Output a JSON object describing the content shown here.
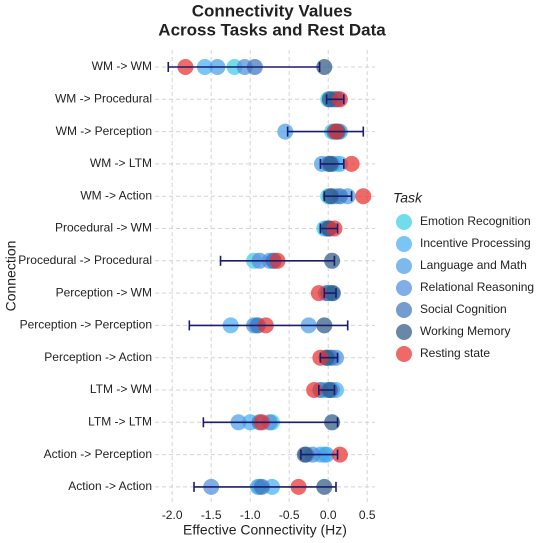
{
  "chart_data": {
    "type": "dot",
    "title": [
      "Connectivity Values",
      "Across Tasks and Rest Data"
    ],
    "x_label": "Effective Connectivity (Hz)",
    "y_label": "Connection",
    "legend_title": "Task",
    "categories": [
      "WM -> WM",
      "WM -> Procedural",
      "WM -> Perception",
      "WM -> LTM",
      "WM -> Action",
      "Procedural -> WM",
      "Procedural -> Procedural",
      "Perception -> WM",
      "Perception -> Perception",
      "Perception -> Action",
      "LTM -> WM",
      "LTM -> LTM",
      "Action -> Perception",
      "Action -> Action"
    ],
    "series": [
      {
        "name": "Emotion Recognition",
        "color": "#3ccfe6",
        "values": [
          -1.2,
          0.0,
          0.05,
          0.1,
          0.0,
          -0.05,
          -0.95,
          0.0,
          -0.92,
          0.05,
          -0.05,
          -0.72,
          -0.05,
          -0.88
        ]
      },
      {
        "name": "Incentive Processing",
        "color": "#48adf2",
        "values": [
          -1.58,
          0.08,
          0.1,
          0.15,
          0.1,
          0.0,
          -0.7,
          0.05,
          -1.25,
          0.0,
          0.1,
          -1.0,
          -0.1,
          -0.72
        ]
      },
      {
        "name": "Language and Math",
        "color": "#4a9fe8",
        "values": [
          -1.42,
          0.12,
          -0.55,
          -0.08,
          0.25,
          -0.02,
          -0.75,
          -0.03,
          -0.25,
          -0.02,
          0.0,
          -1.15,
          -0.02,
          -0.9
        ]
      },
      {
        "name": "Relational Reasoning",
        "color": "#4f8fdc",
        "values": [
          -1.07,
          0.05,
          0.15,
          0.05,
          0.05,
          0.02,
          -0.88,
          0.02,
          -0.95,
          0.1,
          0.05,
          -0.75,
          -0.2,
          -1.5
        ]
      },
      {
        "name": "Social Cognition",
        "color": "#3e76bd",
        "values": [
          -0.94,
          0.1,
          0.08,
          0.0,
          0.15,
          0.0,
          -0.7,
          0.0,
          -0.9,
          0.03,
          -0.1,
          -0.88,
          -0.28,
          -0.85
        ]
      },
      {
        "name": "Working Memory",
        "color": "#2f5a87",
        "values": [
          -0.05,
          0.02,
          0.12,
          0.03,
          0.03,
          0.01,
          0.05,
          0.06,
          -0.05,
          -0.02,
          0.02,
          0.05,
          -0.3,
          -0.05
        ]
      },
      {
        "name": "Resting state",
        "color": "#e8302f",
        "values": [
          -1.83,
          0.15,
          0.1,
          0.3,
          0.45,
          0.08,
          -0.65,
          -0.12,
          -0.8,
          -0.1,
          -0.18,
          -0.85,
          0.15,
          -0.38
        ]
      }
    ],
    "interval_low": [
      -2.05,
      -0.02,
      -0.52,
      -0.1,
      -0.05,
      -0.1,
      -1.38,
      -0.05,
      -1.78,
      -0.1,
      -0.12,
      -1.6,
      -0.35,
      -1.72
    ],
    "interval_high": [
      -0.11,
      0.2,
      0.45,
      0.2,
      0.3,
      0.12,
      0.08,
      0.1,
      0.25,
      0.12,
      0.08,
      0.12,
      0.12,
      0.1
    ],
    "interval_color": "#1b1b70",
    "xlim": [
      -2.22,
      0.6
    ],
    "xticks": [
      {
        "value": -2,
        "label": "-2.0"
      },
      -1.5,
      {
        "value": -1,
        "label": "-1.0"
      },
      -0.5,
      {
        "value": 0,
        "label": "0.0"
      },
      0.5
    ],
    "grid": true
  }
}
